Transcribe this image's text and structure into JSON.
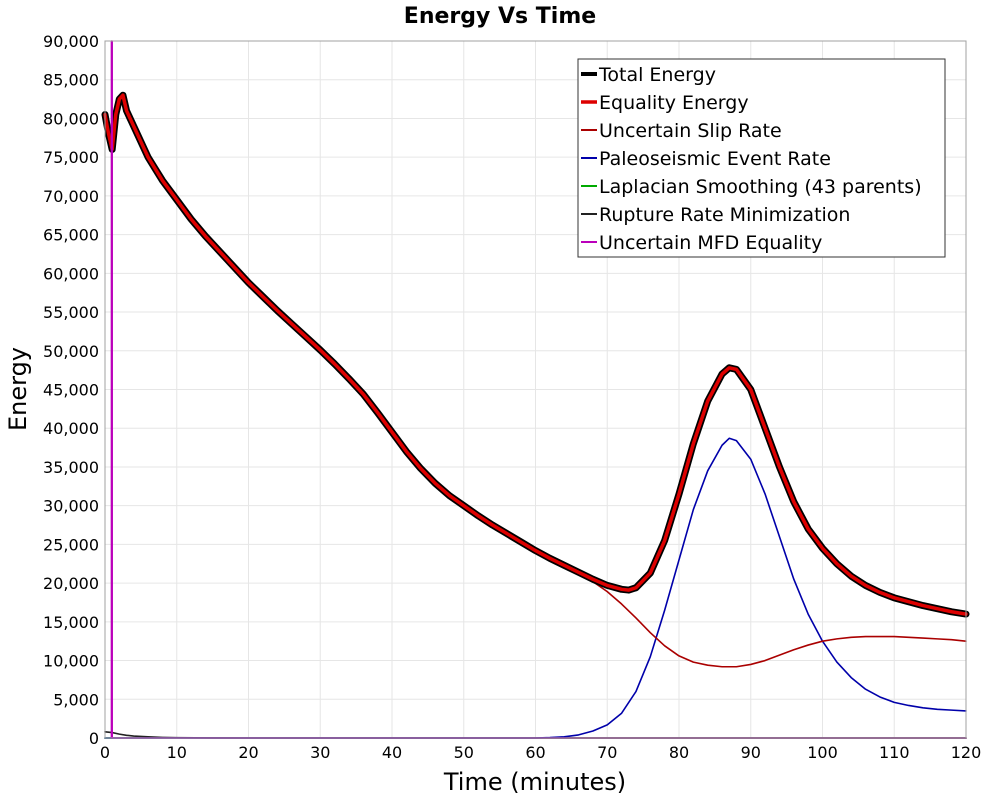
{
  "chart_data": {
    "type": "line",
    "title": "Energy Vs Time",
    "xlabel": "Time (minutes)",
    "ylabel": "Energy",
    "xlim": [
      0,
      120
    ],
    "ylim": [
      0,
      90000
    ],
    "xticks": [
      0,
      10,
      20,
      30,
      40,
      50,
      60,
      70,
      80,
      90,
      100,
      110,
      120
    ],
    "yticks": [
      0,
      5000,
      10000,
      15000,
      20000,
      25000,
      30000,
      35000,
      40000,
      45000,
      50000,
      55000,
      60000,
      65000,
      70000,
      75000,
      80000,
      85000,
      90000
    ],
    "xtick_labels": [
      "0",
      "10",
      "20",
      "30",
      "40",
      "50",
      "60",
      "70",
      "80",
      "90",
      "100",
      "110",
      "120"
    ],
    "ytick_labels": [
      "0",
      "5,000",
      "10,000",
      "15,000",
      "20,000",
      "25,000",
      "30,000",
      "35,000",
      "40,000",
      "45,000",
      "50,000",
      "55,000",
      "60,000",
      "65,000",
      "70,000",
      "75,000",
      "80,000",
      "85,000",
      "90,000"
    ],
    "grid": true,
    "legend_position": "top-right",
    "series": [
      {
        "name": "Total Energy",
        "color": "#000000",
        "x": [
          0,
          0.5,
          1,
          1.5,
          2,
          2.5,
          3,
          4,
          5,
          6,
          7,
          8,
          10,
          12,
          14,
          16,
          18,
          20,
          22,
          24,
          26,
          28,
          30,
          32,
          34,
          36,
          38,
          40,
          42,
          44,
          46,
          48,
          50,
          52,
          54,
          56,
          58,
          60,
          62,
          64,
          66,
          68,
          70,
          72,
          73,
          74,
          76,
          78,
          80,
          82,
          84,
          86,
          87,
          88,
          90,
          92,
          94,
          96,
          98,
          100,
          102,
          104,
          106,
          108,
          110,
          112,
          114,
          116,
          118,
          120
        ],
        "y": [
          80500,
          78000,
          76000,
          80500,
          82500,
          83000,
          81000,
          79000,
          77000,
          75000,
          73500,
          72000,
          69500,
          67000,
          64800,
          62800,
          60800,
          58800,
          57000,
          55200,
          53500,
          51800,
          50100,
          48300,
          46400,
          44400,
          42000,
          39500,
          37000,
          34800,
          32900,
          31300,
          30000,
          28700,
          27500,
          26400,
          25300,
          24200,
          23200,
          22300,
          21400,
          20500,
          19700,
          19200,
          19100,
          19400,
          21300,
          25500,
          31500,
          38000,
          43500,
          47000,
          47800,
          47600,
          45000,
          40000,
          35000,
          30500,
          27000,
          24500,
          22500,
          20900,
          19700,
          18800,
          18100,
          17600,
          17100,
          16700,
          16300,
          16000
        ]
      },
      {
        "name": "Equality Energy",
        "color": "#dd0000",
        "x": [
          0,
          0.5,
          1,
          1.5,
          2,
          2.5,
          3,
          4,
          5,
          6,
          7,
          8,
          10,
          12,
          14,
          16,
          18,
          20,
          22,
          24,
          26,
          28,
          30,
          32,
          34,
          36,
          38,
          40,
          42,
          44,
          46,
          48,
          50,
          52,
          54,
          56,
          58,
          60,
          62,
          64,
          66,
          68,
          70,
          72,
          73,
          74,
          76,
          78,
          80,
          82,
          84,
          86,
          87,
          88,
          90,
          92,
          94,
          96,
          98,
          100,
          102,
          104,
          106,
          108,
          110,
          112,
          114,
          116,
          118,
          120
        ],
        "y": [
          80500,
          78000,
          76000,
          80500,
          82500,
          83000,
          81000,
          79000,
          77000,
          75000,
          73500,
          72000,
          69500,
          67000,
          64800,
          62800,
          60800,
          58800,
          57000,
          55200,
          53500,
          51800,
          50100,
          48300,
          46400,
          44400,
          42000,
          39500,
          37000,
          34800,
          32900,
          31300,
          30000,
          28700,
          27500,
          26400,
          25300,
          24200,
          23200,
          22300,
          21400,
          20500,
          19700,
          19200,
          19100,
          19400,
          21300,
          25500,
          31500,
          38000,
          43500,
          47000,
          47800,
          47600,
          45000,
          40000,
          35000,
          30500,
          27000,
          24500,
          22500,
          20900,
          19700,
          18800,
          18100,
          17600,
          17100,
          16700,
          16300,
          16000
        ]
      },
      {
        "name": "Uncertain Slip Rate",
        "color": "#aa0000",
        "x": [
          0,
          0.5,
          1,
          1.5,
          2,
          2.5,
          3,
          4,
          5,
          6,
          7,
          8,
          10,
          12,
          14,
          16,
          18,
          20,
          22,
          24,
          26,
          28,
          30,
          32,
          34,
          36,
          38,
          40,
          42,
          44,
          46,
          48,
          50,
          52,
          54,
          56,
          58,
          60,
          62,
          64,
          66,
          68,
          70,
          72,
          74,
          76,
          78,
          80,
          82,
          84,
          86,
          88,
          90,
          92,
          94,
          96,
          98,
          100,
          102,
          104,
          106,
          108,
          110,
          112,
          114,
          116,
          118,
          120
        ],
        "y": [
          80500,
          78000,
          76000,
          80500,
          82500,
          83000,
          81000,
          79000,
          77000,
          75000,
          73500,
          72000,
          69500,
          67000,
          64800,
          62800,
          60800,
          58800,
          57000,
          55200,
          53500,
          51800,
          50100,
          48300,
          46400,
          44400,
          42000,
          39500,
          37000,
          34800,
          32900,
          31300,
          30000,
          28700,
          27500,
          26400,
          25300,
          24200,
          23200,
          22300,
          21300,
          20200,
          18900,
          17300,
          15500,
          13600,
          11900,
          10600,
          9800,
          9400,
          9200,
          9200,
          9500,
          10000,
          10700,
          11400,
          12000,
          12500,
          12800,
          13000,
          13100,
          13100,
          13100,
          13000,
          12900,
          12800,
          12700,
          12500
        ]
      },
      {
        "name": "Paleoseismic Event Rate",
        "color": "#0000aa",
        "x": [
          0,
          1,
          2,
          4,
          6,
          8,
          10,
          20,
          40,
          60,
          62,
          64,
          66,
          68,
          70,
          72,
          74,
          76,
          78,
          80,
          82,
          84,
          86,
          87,
          88,
          90,
          92,
          94,
          96,
          98,
          100,
          102,
          104,
          106,
          108,
          110,
          112,
          114,
          116,
          118,
          120
        ],
        "y": [
          0,
          0,
          0,
          0,
          0,
          0,
          0,
          0,
          0,
          0,
          50,
          150,
          400,
          900,
          1700,
          3200,
          6000,
          10500,
          16500,
          23000,
          29500,
          34500,
          37800,
          38700,
          38400,
          36000,
          31500,
          26000,
          20500,
          16000,
          12500,
          9800,
          7800,
          6300,
          5300,
          4600,
          4200,
          3900,
          3700,
          3600,
          3500
        ]
      },
      {
        "name": "Laplacian Smoothing (43 parents)",
        "color": "#00aa00",
        "x": [
          0,
          120
        ],
        "y": [
          0,
          0
        ]
      },
      {
        "name": "Rupture Rate Minimization",
        "color": "#222222",
        "x": [
          0,
          1,
          2,
          3,
          4,
          6,
          8,
          10,
          15,
          20,
          120
        ],
        "y": [
          800,
          700,
          500,
          350,
          250,
          150,
          80,
          40,
          10,
          0,
          0
        ]
      },
      {
        "name": "Uncertain MFD Equality",
        "color": "#bb00bb",
        "x": [
          0.9,
          0.9,
          1.0,
          1.0,
          120
        ],
        "y": [
          0,
          90000,
          90000,
          0,
          0
        ]
      }
    ]
  }
}
